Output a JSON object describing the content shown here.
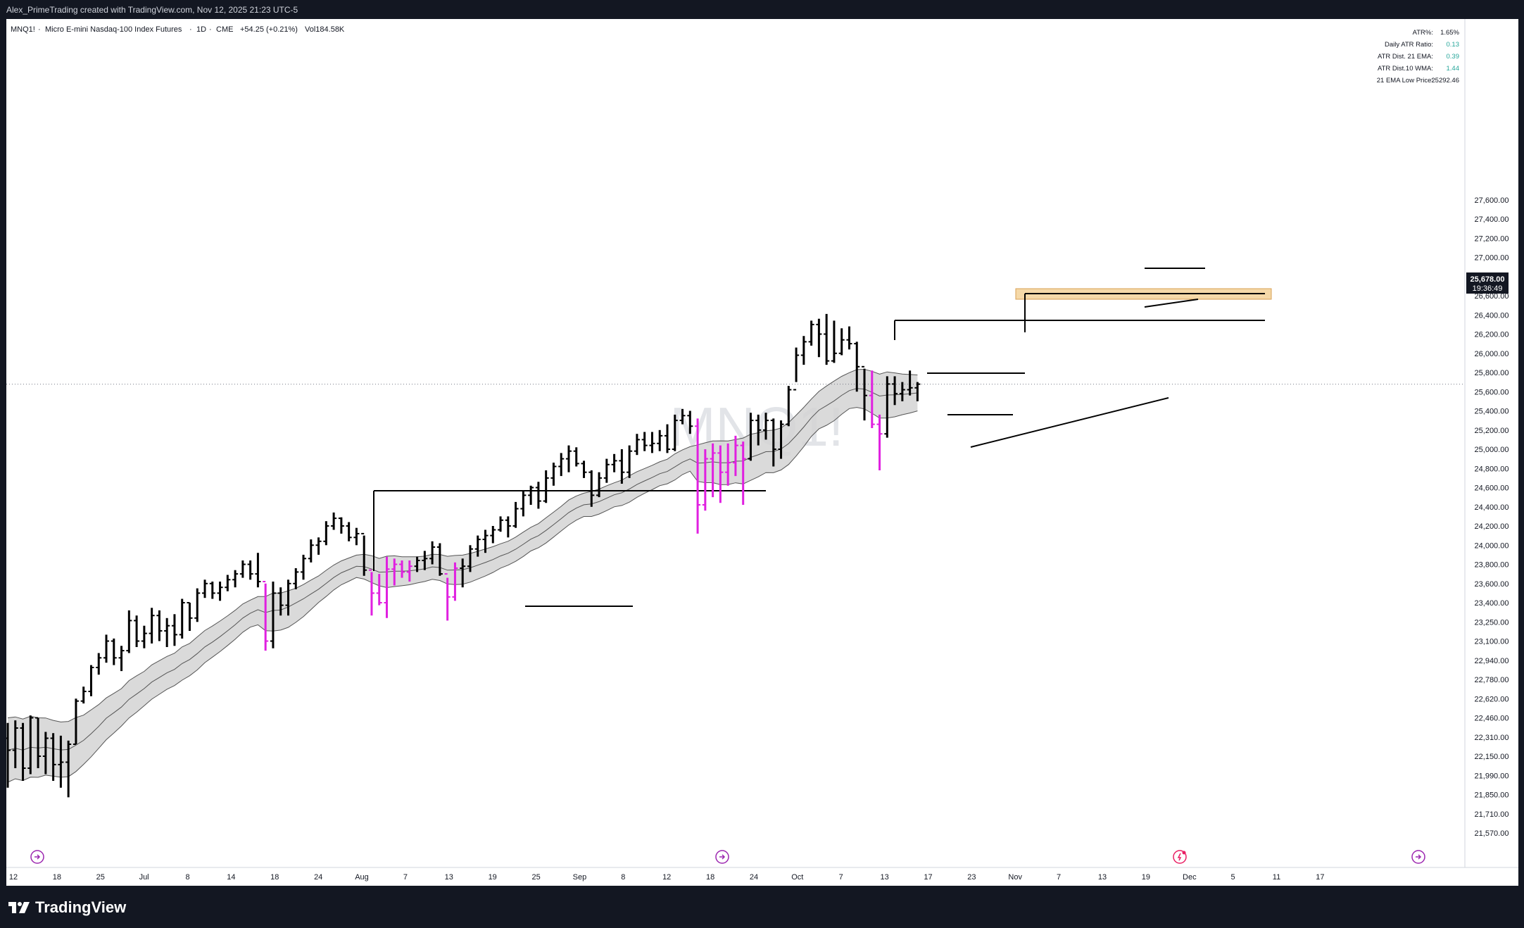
{
  "header": {
    "credit": "Alex_PrimeTrading created with TradingView.com, Nov 12, 2025 21:23 UTC-5"
  },
  "legend": {
    "symbol": "MNQ1!",
    "description": "Micro E-mini Nasdaq-100 Index Futures",
    "interval": "1D",
    "exchange": "CME",
    "change": "+54.25 (+0.21%)",
    "volume": "Vol184.58K"
  },
  "watermark": "MNQ1!",
  "stats_table": [
    {
      "label": "ATR%:",
      "value": "1.65%",
      "color": "#131722"
    },
    {
      "label": "Daily ATR Ratio:",
      "value": "0.13",
      "color": "#26a69a"
    },
    {
      "label": "ATR Dist. 21 EMA:",
      "value": "0.39",
      "color": "#26a69a"
    },
    {
      "label": "ATR Dist.10 WMA:",
      "value": "1.44",
      "color": "#26a69a"
    },
    {
      "label": "21 EMA Low Price:",
      "value": "25292.46",
      "color": "#131722"
    }
  ],
  "price_badge": {
    "price": "25,678.00",
    "countdown": "19:36:49"
  },
  "footer": {
    "brand": "TradingView"
  },
  "colors": {
    "bar": "#000000",
    "highlight_bar": "#e020e0",
    "band_fill": "#d4d4d4",
    "zone_fill": "#f5d9a8",
    "zone_border": "#d8a055",
    "event_icon": "#9c27b0",
    "earnings_icon": "#e91e63"
  },
  "chart_data": {
    "type": "ohlc",
    "title": "",
    "xlabel": "",
    "ylabel": "",
    "x_tick_labels": [
      "12",
      "18",
      "25",
      "Jul",
      "8",
      "14",
      "18",
      "24",
      "Aug",
      "7",
      "13",
      "19",
      "25",
      "Sep",
      "8",
      "12",
      "18",
      "24",
      "Oct",
      "7",
      "13",
      "17",
      "23",
      "Nov",
      "7",
      "13",
      "19",
      "Dec",
      "5",
      "11",
      "17"
    ],
    "y_ticks": [
      21570,
      21710,
      21850,
      21990,
      22150,
      22310,
      22460,
      22620,
      22780,
      22940,
      23100,
      23250,
      23400,
      23600,
      23800,
      24000,
      24200,
      24400,
      24600,
      24800,
      25000,
      25200,
      25400,
      25600,
      25800,
      26000,
      26200,
      26400,
      26600,
      26800,
      27000,
      27200,
      27400,
      27600
    ],
    "y_tick_labels": [
      "21,570.00",
      "21,710.00",
      "21,850.00",
      "21,990.00",
      "22,150.00",
      "22,310.00",
      "22,460.00",
      "22,620.00",
      "22,780.00",
      "22,940.00",
      "23,100.00",
      "23,250.00",
      "23,400.00",
      "23,600.00",
      "23,800.00",
      "24,000.00",
      "24,200.00",
      "24,400.00",
      "24,600.00",
      "24,800.00",
      "25,000.00",
      "25,200.00",
      "25,400.00",
      "25,600.00",
      "25,800.00",
      "26,000.00",
      "26,200.00",
      "26,400.00",
      "26,600.00",
      "26,800.00",
      "27,000.00",
      "27,200.00",
      "27,400.00",
      "27,600.00"
    ],
    "last_price": 25678,
    "bars": [
      {
        "o": 22300,
        "h": 22420,
        "l": 21900,
        "c": 22200,
        "hl": false
      },
      {
        "o": 22200,
        "h": 22440,
        "l": 22050,
        "c": 22380,
        "hl": false
      },
      {
        "o": 22380,
        "h": 22420,
        "l": 21950,
        "c": 22050,
        "hl": false
      },
      {
        "o": 22050,
        "h": 22480,
        "l": 22000,
        "c": 22460,
        "hl": false
      },
      {
        "o": 22460,
        "h": 22460,
        "l": 22050,
        "c": 22150,
        "hl": false
      },
      {
        "o": 22150,
        "h": 22350,
        "l": 22000,
        "c": 22300,
        "hl": false
      },
      {
        "o": 22300,
        "h": 22340,
        "l": 21950,
        "c": 22080,
        "hl": false
      },
      {
        "o": 22080,
        "h": 22320,
        "l": 21900,
        "c": 22100,
        "hl": false
      },
      {
        "o": 22100,
        "h": 22280,
        "l": 21830,
        "c": 22250,
        "hl": false
      },
      {
        "o": 22250,
        "h": 22620,
        "l": 22250,
        "c": 22600,
        "hl": false
      },
      {
        "o": 22600,
        "h": 22720,
        "l": 22580,
        "c": 22680,
        "hl": false
      },
      {
        "o": 22680,
        "h": 22900,
        "l": 22640,
        "c": 22880,
        "hl": false
      },
      {
        "o": 22880,
        "h": 23000,
        "l": 22820,
        "c": 22960,
        "hl": false
      },
      {
        "o": 22960,
        "h": 23150,
        "l": 22920,
        "c": 23100,
        "hl": false
      },
      {
        "o": 23100,
        "h": 23120,
        "l": 22900,
        "c": 22960,
        "hl": false
      },
      {
        "o": 22960,
        "h": 23060,
        "l": 22850,
        "c": 23020,
        "hl": false
      },
      {
        "o": 23020,
        "h": 23340,
        "l": 23000,
        "c": 23260,
        "hl": false
      },
      {
        "o": 23260,
        "h": 23300,
        "l": 23050,
        "c": 23100,
        "hl": false
      },
      {
        "o": 23100,
        "h": 23220,
        "l": 23040,
        "c": 23160,
        "hl": false
      },
      {
        "o": 23160,
        "h": 23360,
        "l": 23080,
        "c": 23300,
        "hl": false
      },
      {
        "o": 23300,
        "h": 23340,
        "l": 23100,
        "c": 23180,
        "hl": false
      },
      {
        "o": 23180,
        "h": 23280,
        "l": 23050,
        "c": 23220,
        "hl": false
      },
      {
        "o": 23220,
        "h": 23310,
        "l": 23060,
        "c": 23150,
        "hl": false
      },
      {
        "o": 23150,
        "h": 23440,
        "l": 23120,
        "c": 23400,
        "hl": false
      },
      {
        "o": 23400,
        "h": 23400,
        "l": 23180,
        "c": 23280,
        "hl": false
      },
      {
        "o": 23280,
        "h": 23550,
        "l": 23250,
        "c": 23500,
        "hl": false
      },
      {
        "o": 23500,
        "h": 23640,
        "l": 23450,
        "c": 23600,
        "hl": false
      },
      {
        "o": 23600,
        "h": 23620,
        "l": 23440,
        "c": 23500,
        "hl": false
      },
      {
        "o": 23500,
        "h": 23620,
        "l": 23420,
        "c": 23560,
        "hl": false
      },
      {
        "o": 23560,
        "h": 23690,
        "l": 23520,
        "c": 23640,
        "hl": false
      },
      {
        "o": 23640,
        "h": 23740,
        "l": 23560,
        "c": 23700,
        "hl": false
      },
      {
        "o": 23700,
        "h": 23840,
        "l": 23660,
        "c": 23800,
        "hl": false
      },
      {
        "o": 23800,
        "h": 23840,
        "l": 23640,
        "c": 23700,
        "hl": false
      },
      {
        "o": 23700,
        "h": 23920,
        "l": 23560,
        "c": 23620,
        "hl": false
      },
      {
        "o": 23620,
        "h": 23600,
        "l": 23020,
        "c": 23100,
        "hl": true
      },
      {
        "o": 23100,
        "h": 23620,
        "l": 23040,
        "c": 23500,
        "hl": false
      },
      {
        "o": 23500,
        "h": 23560,
        "l": 23300,
        "c": 23380,
        "hl": false
      },
      {
        "o": 23380,
        "h": 23640,
        "l": 23300,
        "c": 23600,
        "hl": false
      },
      {
        "o": 23600,
        "h": 23760,
        "l": 23540,
        "c": 23720,
        "hl": false
      },
      {
        "o": 23720,
        "h": 23900,
        "l": 23640,
        "c": 23860,
        "hl": false
      },
      {
        "o": 23860,
        "h": 24060,
        "l": 23820,
        "c": 24000,
        "hl": false
      },
      {
        "o": 24000,
        "h": 24080,
        "l": 23900,
        "c": 24040,
        "hl": false
      },
      {
        "o": 24040,
        "h": 24250,
        "l": 24000,
        "c": 24200,
        "hl": false
      },
      {
        "o": 24200,
        "h": 24340,
        "l": 24160,
        "c": 24280,
        "hl": false
      },
      {
        "o": 24280,
        "h": 24290,
        "l": 24120,
        "c": 24200,
        "hl": false
      },
      {
        "o": 24200,
        "h": 24240,
        "l": 24040,
        "c": 24080,
        "hl": false
      },
      {
        "o": 24080,
        "h": 24180,
        "l": 24000,
        "c": 24120,
        "hl": false
      },
      {
        "o": 24120,
        "h": 24100,
        "l": 23680,
        "c": 23740,
        "hl": false
      },
      {
        "o": 23740,
        "h": 23720,
        "l": 23300,
        "c": 23500,
        "hl": true
      },
      {
        "o": 23500,
        "h": 23700,
        "l": 23380,
        "c": 23400,
        "hl": true
      },
      {
        "o": 23400,
        "h": 23880,
        "l": 23280,
        "c": 23750,
        "hl": true
      },
      {
        "o": 23750,
        "h": 23860,
        "l": 23580,
        "c": 23800,
        "hl": true
      },
      {
        "o": 23800,
        "h": 23840,
        "l": 23660,
        "c": 23720,
        "hl": true
      },
      {
        "o": 23720,
        "h": 23840,
        "l": 23620,
        "c": 23780,
        "hl": true
      },
      {
        "o": 23780,
        "h": 23880,
        "l": 23720,
        "c": 23840,
        "hl": false
      },
      {
        "o": 23840,
        "h": 23940,
        "l": 23740,
        "c": 23860,
        "hl": false
      },
      {
        "o": 23860,
        "h": 24040,
        "l": 23800,
        "c": 23980,
        "hl": false
      },
      {
        "o": 23980,
        "h": 24020,
        "l": 23680,
        "c": 23700,
        "hl": false
      },
      {
        "o": 23700,
        "h": 23660,
        "l": 23260,
        "c": 23460,
        "hl": true
      },
      {
        "o": 23460,
        "h": 23820,
        "l": 23420,
        "c": 23760,
        "hl": true
      },
      {
        "o": 23760,
        "h": 23860,
        "l": 23560,
        "c": 23780,
        "hl": false
      },
      {
        "o": 23780,
        "h": 24000,
        "l": 23720,
        "c": 23960,
        "hl": false
      },
      {
        "o": 23960,
        "h": 24100,
        "l": 23880,
        "c": 24060,
        "hl": false
      },
      {
        "o": 24060,
        "h": 24160,
        "l": 23920,
        "c": 24100,
        "hl": false
      },
      {
        "o": 24100,
        "h": 24200,
        "l": 24020,
        "c": 24160,
        "hl": false
      },
      {
        "o": 24160,
        "h": 24300,
        "l": 24140,
        "c": 24260,
        "hl": false
      },
      {
        "o": 24260,
        "h": 24300,
        "l": 24080,
        "c": 24200,
        "hl": false
      },
      {
        "o": 24200,
        "h": 24450,
        "l": 24180,
        "c": 24380,
        "hl": false
      },
      {
        "o": 24380,
        "h": 24560,
        "l": 24300,
        "c": 24520,
        "hl": false
      },
      {
        "o": 24520,
        "h": 24620,
        "l": 24420,
        "c": 24600,
        "hl": false
      },
      {
        "o": 24600,
        "h": 24660,
        "l": 24380,
        "c": 24460,
        "hl": false
      },
      {
        "o": 24460,
        "h": 24780,
        "l": 24440,
        "c": 24700,
        "hl": false
      },
      {
        "o": 24700,
        "h": 24860,
        "l": 24620,
        "c": 24820,
        "hl": false
      },
      {
        "o": 24820,
        "h": 24960,
        "l": 24720,
        "c": 24900,
        "hl": false
      },
      {
        "o": 24900,
        "h": 25040,
        "l": 24760,
        "c": 24980,
        "hl": false
      },
      {
        "o": 24980,
        "h": 25020,
        "l": 24820,
        "c": 24850,
        "hl": false
      },
      {
        "o": 24850,
        "h": 24880,
        "l": 24700,
        "c": 24760,
        "hl": false
      },
      {
        "o": 24760,
        "h": 24780,
        "l": 24400,
        "c": 24520,
        "hl": false
      },
      {
        "o": 24520,
        "h": 24760,
        "l": 24500,
        "c": 24700,
        "hl": false
      },
      {
        "o": 24700,
        "h": 24900,
        "l": 24650,
        "c": 24840,
        "hl": false
      },
      {
        "o": 24840,
        "h": 24950,
        "l": 24760,
        "c": 24880,
        "hl": false
      },
      {
        "o": 24880,
        "h": 25000,
        "l": 24640,
        "c": 24760,
        "hl": false
      },
      {
        "o": 24760,
        "h": 25040,
        "l": 24700,
        "c": 24980,
        "hl": false
      },
      {
        "o": 24980,
        "h": 25160,
        "l": 24940,
        "c": 25100,
        "hl": false
      },
      {
        "o": 25100,
        "h": 25180,
        "l": 24980,
        "c": 25040,
        "hl": false
      },
      {
        "o": 25040,
        "h": 25180,
        "l": 24960,
        "c": 25060,
        "hl": false
      },
      {
        "o": 25060,
        "h": 25200,
        "l": 24980,
        "c": 25140,
        "hl": false
      },
      {
        "o": 25140,
        "h": 25260,
        "l": 24960,
        "c": 25000,
        "hl": false
      },
      {
        "o": 25000,
        "h": 25360,
        "l": 24980,
        "c": 25300,
        "hl": false
      },
      {
        "o": 25300,
        "h": 25420,
        "l": 25260,
        "c": 25350,
        "hl": false
      },
      {
        "o": 25350,
        "h": 25400,
        "l": 25160,
        "c": 25240,
        "hl": false
      },
      {
        "o": 25240,
        "h": 25320,
        "l": 24120,
        "c": 24420,
        "hl": true
      },
      {
        "o": 24420,
        "h": 25000,
        "l": 24360,
        "c": 24900,
        "hl": true
      },
      {
        "o": 24900,
        "h": 25060,
        "l": 24500,
        "c": 24960,
        "hl": true
      },
      {
        "o": 24960,
        "h": 25040,
        "l": 24440,
        "c": 24760,
        "hl": true
      },
      {
        "o": 24760,
        "h": 25060,
        "l": 24620,
        "c": 24860,
        "hl": true
      },
      {
        "o": 24860,
        "h": 25140,
        "l": 24720,
        "c": 25040,
        "hl": true
      },
      {
        "o": 25040,
        "h": 25080,
        "l": 24420,
        "c": 24900,
        "hl": true
      },
      {
        "o": 24900,
        "h": 25380,
        "l": 24880,
        "c": 25300,
        "hl": false
      },
      {
        "o": 25300,
        "h": 25360,
        "l": 25040,
        "c": 25200,
        "hl": false
      },
      {
        "o": 25200,
        "h": 25380,
        "l": 25100,
        "c": 25300,
        "hl": false
      },
      {
        "o": 25300,
        "h": 25320,
        "l": 24820,
        "c": 25000,
        "hl": false
      },
      {
        "o": 25000,
        "h": 25300,
        "l": 24900,
        "c": 25260,
        "hl": false
      },
      {
        "o": 25260,
        "h": 25660,
        "l": 25240,
        "c": 25620,
        "hl": false
      },
      {
        "o": 25620,
        "h": 26060,
        "l": 25700,
        "c": 25980,
        "hl": false
      },
      {
        "o": 25980,
        "h": 26180,
        "l": 25880,
        "c": 26120,
        "hl": false
      },
      {
        "o": 26120,
        "h": 26340,
        "l": 26080,
        "c": 26300,
        "hl": false
      },
      {
        "o": 26300,
        "h": 26360,
        "l": 25960,
        "c": 26200,
        "hl": false
      },
      {
        "o": 26200,
        "h": 26410,
        "l": 25880,
        "c": 25920,
        "hl": false
      },
      {
        "o": 25920,
        "h": 26340,
        "l": 25900,
        "c": 26000,
        "hl": false
      },
      {
        "o": 26000,
        "h": 26260,
        "l": 25980,
        "c": 26140,
        "hl": false
      },
      {
        "o": 26140,
        "h": 26280,
        "l": 26040,
        "c": 26100,
        "hl": false
      },
      {
        "o": 26100,
        "h": 26120,
        "l": 25600,
        "c": 25860,
        "hl": false
      },
      {
        "o": 25860,
        "h": 25840,
        "l": 25300,
        "c": 25560,
        "hl": false
      },
      {
        "o": 25560,
        "h": 25820,
        "l": 25220,
        "c": 25260,
        "hl": true
      },
      {
        "o": 25260,
        "h": 25360,
        "l": 24780,
        "c": 25160,
        "hl": true
      },
      {
        "o": 25160,
        "h": 25760,
        "l": 25120,
        "c": 25680,
        "hl": false
      },
      {
        "o": 25680,
        "h": 25760,
        "l": 25460,
        "c": 25580,
        "hl": false
      },
      {
        "o": 25580,
        "h": 25700,
        "l": 25500,
        "c": 25620,
        "hl": false
      },
      {
        "o": 25620,
        "h": 25820,
        "l": 25560,
        "c": 25640,
        "hl": false
      },
      {
        "o": 25640,
        "h": 25700,
        "l": 25500,
        "c": 25678,
        "hl": false
      }
    ]
  }
}
